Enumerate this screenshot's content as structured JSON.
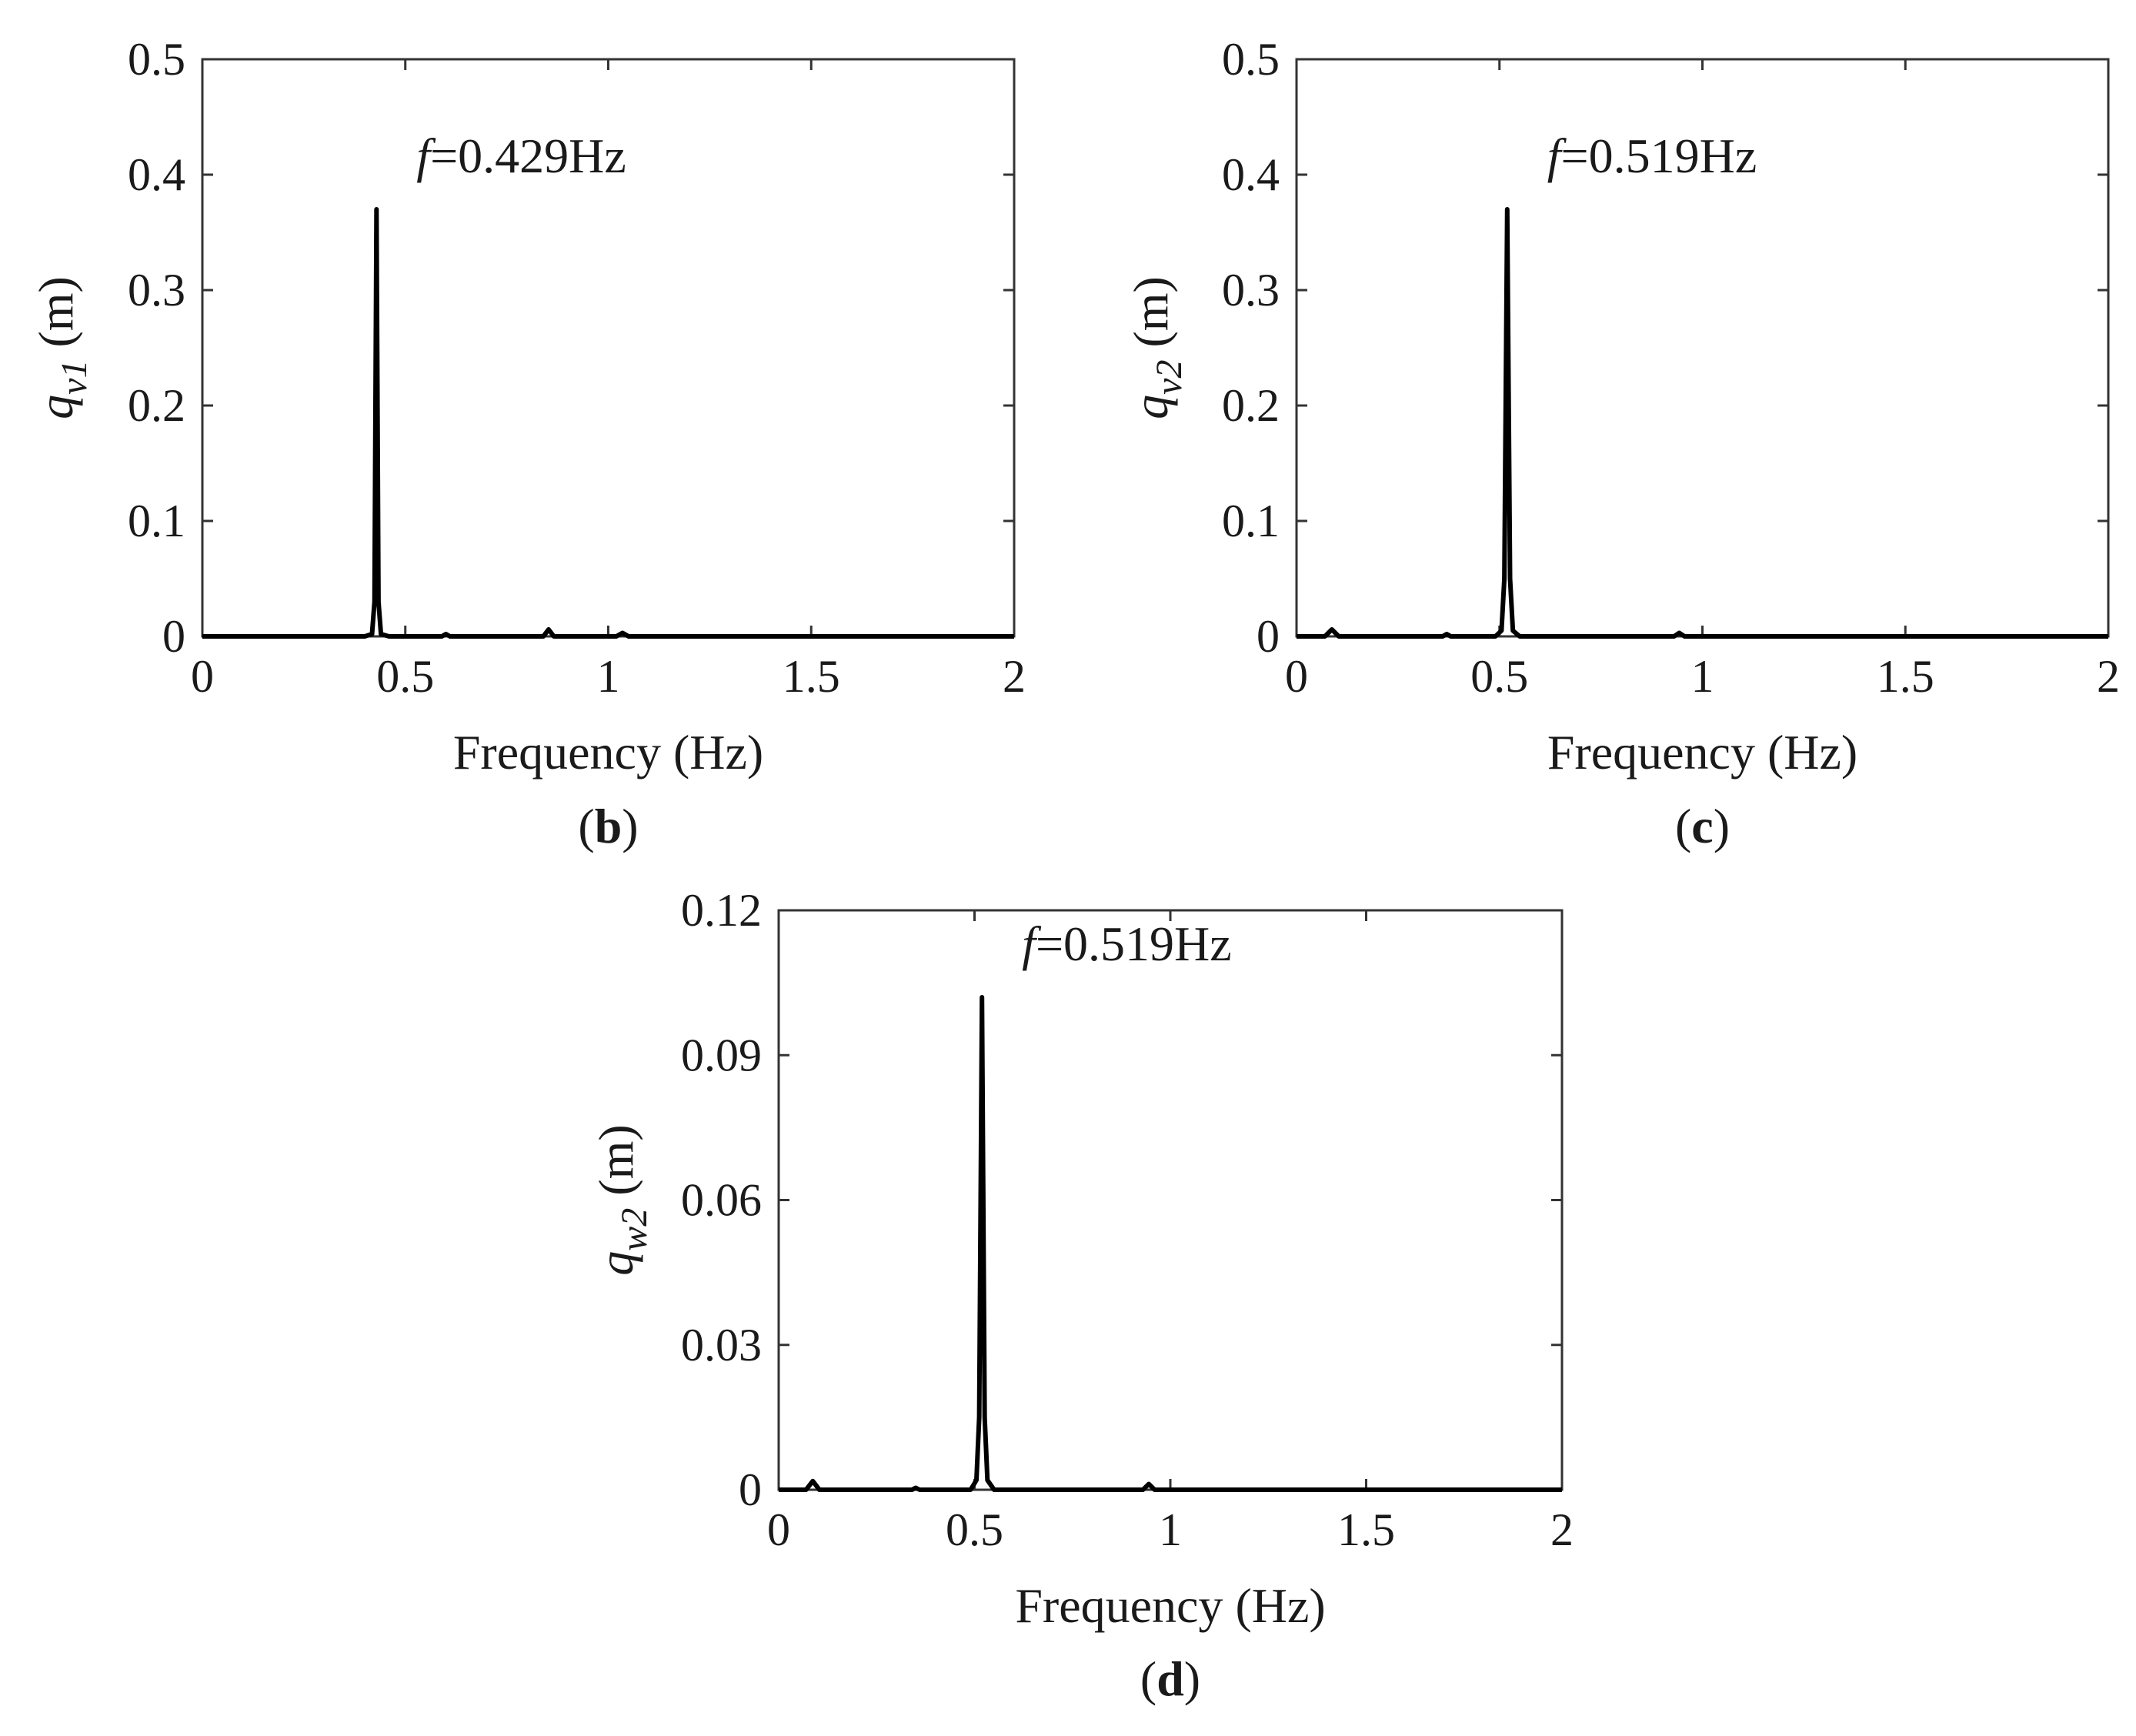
{
  "chart_data": [
    {
      "type": "line",
      "panel_label": "b",
      "annotation": {
        "prefix": "f",
        "text": "=0.429Hz",
        "x": 0.429
      },
      "xlabel": "Frequency (Hz)",
      "ylabel": {
        "symbol": "q",
        "subscript": "v1",
        "unit": "(m)"
      },
      "xlim": [
        0,
        2
      ],
      "ylim": [
        0,
        0.5
      ],
      "xticks": [
        0,
        0.5,
        1,
        1.5,
        2
      ],
      "xtick_labels": [
        "0",
        "0.5",
        "1",
        "1.5",
        "2"
      ],
      "yticks": [
        0,
        0.1,
        0.2,
        0.3,
        0.4,
        0.5
      ],
      "ytick_labels": [
        "0",
        "0.1",
        "0.2",
        "0.3",
        "0.4",
        "0.5"
      ],
      "grid": false,
      "series": [
        {
          "x": [
            0,
            0.4,
            0.418,
            0.424,
            0.429,
            0.434,
            0.44,
            0.46,
            0.59,
            0.6,
            0.61,
            0.84,
            0.853,
            0.866,
            1.02,
            1.035,
            1.05,
            2
          ],
          "y": [
            0,
            0,
            0.002,
            0.03,
            0.37,
            0.03,
            0.002,
            0,
            0,
            0.002,
            0,
            0,
            0.006,
            0,
            0,
            0.003,
            0,
            0
          ]
        }
      ]
    },
    {
      "type": "line",
      "panel_label": "c",
      "annotation": {
        "prefix": "f",
        "text": "=0.519Hz",
        "x": 0.519
      },
      "xlabel": "Frequency (Hz)",
      "ylabel": {
        "symbol": "q",
        "subscript": "v2",
        "unit": "(m)"
      },
      "xlim": [
        0,
        2
      ],
      "ylim": [
        0,
        0.5
      ],
      "xticks": [
        0,
        0.5,
        1,
        1.5,
        2
      ],
      "xtick_labels": [
        "0",
        "0.5",
        "1",
        "1.5",
        "2"
      ],
      "yticks": [
        0,
        0.1,
        0.2,
        0.3,
        0.4,
        0.5
      ],
      "ytick_labels": [
        "0",
        "0.1",
        "0.2",
        "0.3",
        "0.4",
        "0.5"
      ],
      "grid": false,
      "series": [
        {
          "x": [
            0,
            0.07,
            0.087,
            0.104,
            0.36,
            0.37,
            0.38,
            0.49,
            0.505,
            0.512,
            0.519,
            0.526,
            0.533,
            0.55,
            0.93,
            0.943,
            0.956,
            2
          ],
          "y": [
            0,
            0,
            0.006,
            0,
            0,
            0.002,
            0,
            0,
            0.005,
            0.05,
            0.37,
            0.05,
            0.005,
            0,
            0,
            0.003,
            0,
            0
          ]
        }
      ]
    },
    {
      "type": "line",
      "panel_label": "d",
      "annotation": {
        "prefix": "f",
        "text": "=0.519Hz",
        "x": 0.519
      },
      "xlabel": "Frequency (Hz)",
      "ylabel": {
        "symbol": "q",
        "subscript": "w2",
        "unit": "(m)"
      },
      "xlim": [
        0,
        2
      ],
      "ylim": [
        0,
        0.12
      ],
      "xticks": [
        0,
        0.5,
        1,
        1.5,
        2
      ],
      "xtick_labels": [
        "0",
        "0.5",
        "1",
        "1.5",
        "2"
      ],
      "yticks": [
        0,
        0.03,
        0.06,
        0.09,
        0.12
      ],
      "ytick_labels": [
        "0",
        "0.03",
        "0.06",
        "0.09",
        "0.12"
      ],
      "grid": false,
      "series": [
        {
          "x": [
            0,
            0.07,
            0.087,
            0.104,
            0.34,
            0.35,
            0.36,
            0.49,
            0.505,
            0.512,
            0.519,
            0.526,
            0.533,
            0.55,
            0.93,
            0.945,
            0.96,
            2
          ],
          "y": [
            0,
            0,
            0.0018,
            0,
            0,
            0.0004,
            0,
            0,
            0.002,
            0.015,
            0.102,
            0.015,
            0.002,
            0,
            0,
            0.0012,
            0,
            0
          ]
        }
      ]
    }
  ]
}
